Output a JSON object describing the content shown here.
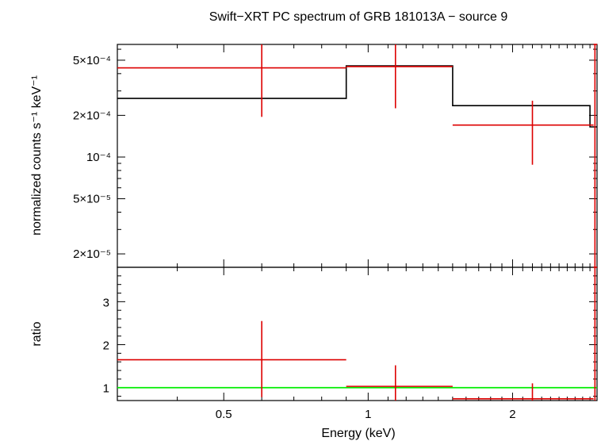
{
  "chart_data": {
    "type": "step",
    "title": "Swift−XRT PC spectrum of GRB 181013A − source 9",
    "xlabel": "Energy (keV)",
    "xscale": "log",
    "xlim": [
      0.3,
      3.0
    ],
    "x_ticks": [
      {
        "value": 0.5,
        "label": "0.5"
      },
      {
        "value": 1,
        "label": "1"
      },
      {
        "value": 2,
        "label": "2"
      }
    ],
    "panels": [
      {
        "id": "spectrum",
        "ylabel": "normalized counts s⁻¹ keV⁻¹",
        "yscale": "log",
        "ylim": [
          1.6e-05,
          0.00065
        ],
        "y_ticks": [
          {
            "value": 0.0005,
            "label": "5×10⁻⁴"
          },
          {
            "value": 0.0002,
            "label": "2×10⁻⁴"
          },
          {
            "value": 0.0001,
            "label": "10⁻⁴"
          },
          {
            "value": 5e-05,
            "label": "5×10⁻⁵"
          },
          {
            "value": 2e-05,
            "label": "2×10⁻⁵"
          }
        ],
        "data": [
          {
            "x": 0.6,
            "xlo": 0.3,
            "xhi": 0.9,
            "y": 0.00044,
            "ylo": 0.000195,
            "yhi": 0.00065
          },
          {
            "x": 1.14,
            "xlo": 0.9,
            "xhi": 1.5,
            "y": 0.00045,
            "ylo": 0.000225,
            "yhi": 0.00065
          },
          {
            "x": 2.2,
            "xlo": 1.5,
            "xhi": 2.95,
            "y": 0.00017,
            "ylo": 8.8e-05,
            "yhi": 0.000255
          },
          {
            "x": 2.97,
            "xlo": 2.95,
            "xhi": 3.0,
            "y": 0.00065,
            "ylo": 1.6e-05,
            "yhi": 0.00065
          }
        ],
        "model": [
          {
            "xlo": 0.3,
            "xhi": 0.9,
            "y": 0.000265
          },
          {
            "xlo": 0.9,
            "xhi": 1.5,
            "y": 0.000455
          },
          {
            "xlo": 1.5,
            "xhi": 2.9,
            "y": 0.000235
          },
          {
            "xlo": 2.9,
            "xhi": 3.0,
            "y": 0.000165
          }
        ]
      },
      {
        "id": "ratio",
        "ylabel": "ratio",
        "yscale": "linear",
        "ylim": [
          0.7,
          3.8
        ],
        "y_ticks": [
          {
            "value": 1,
            "label": "1"
          },
          {
            "value": 2,
            "label": "2"
          },
          {
            "value": 3,
            "label": "3"
          }
        ],
        "reference_line": 1,
        "data": [
          {
            "x": 0.6,
            "xlo": 0.3,
            "xhi": 0.9,
            "y": 1.65,
            "ylo": 0.78,
            "yhi": 2.55
          },
          {
            "x": 1.14,
            "xlo": 0.9,
            "xhi": 1.5,
            "y": 1.03,
            "ylo": 0.7,
            "yhi": 1.52
          },
          {
            "x": 2.2,
            "xlo": 1.5,
            "xhi": 2.95,
            "y": 0.74,
            "ylo": 0.7,
            "yhi": 1.1
          },
          {
            "x": 2.97,
            "xlo": 2.95,
            "xhi": 3.0,
            "y": 3.8,
            "ylo": 0.7,
            "yhi": 3.8
          }
        ]
      }
    ],
    "colors": {
      "data": "#dd0000",
      "model": "#000000",
      "reference": "#00ee00",
      "axes": "#000000"
    }
  }
}
